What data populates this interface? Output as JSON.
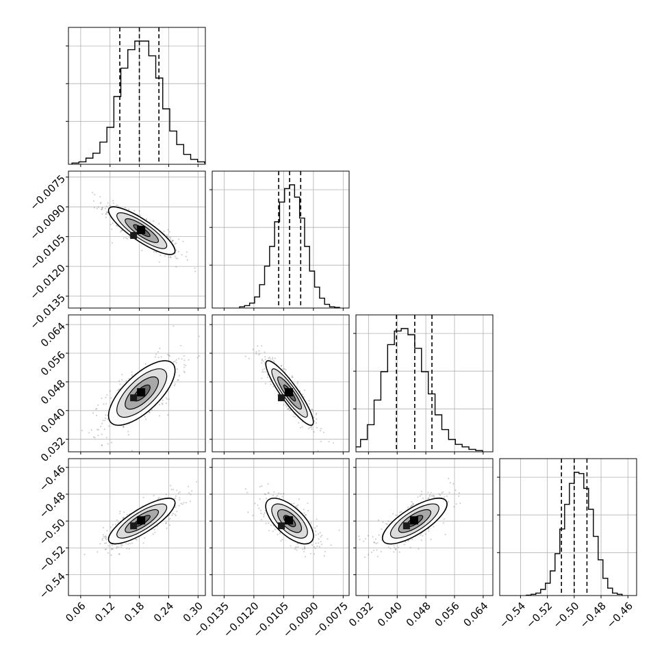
{
  "chart_data": {
    "type": "corner",
    "parameters": 4,
    "grid": true,
    "axes": [
      {
        "range": [
          0.035,
          0.315
        ],
        "ticks": [
          0.06,
          0.12,
          0.18,
          0.24,
          0.3
        ],
        "tick_labels": [
          "0.06",
          "0.12",
          "0.18",
          "0.24",
          "0.30"
        ]
      },
      {
        "range": [
          -0.0141,
          -0.0072
        ],
        "ticks": [
          -0.0135,
          -0.012,
          -0.0105,
          -0.009,
          -0.0075
        ],
        "tick_labels": [
          "−0.0135",
          "−0.0120",
          "−0.0105",
          "−0.0090",
          "−0.0075"
        ]
      },
      {
        "range": [
          0.0285,
          0.0667
        ],
        "ticks": [
          0.032,
          0.04,
          0.048,
          0.056,
          0.064
        ],
        "tick_labels": [
          "0.032",
          "0.040",
          "0.048",
          "0.056",
          "0.064"
        ]
      },
      {
        "range": [
          -0.5555,
          -0.4535
        ],
        "ticks": [
          -0.54,
          -0.52,
          -0.5,
          -0.48,
          -0.46
        ],
        "tick_labels": [
          "−0.54",
          "−0.52",
          "−0.50",
          "−0.48",
          "−0.46"
        ]
      }
    ],
    "marginals": [
      {
        "quantiles": [
          0.14,
          0.18,
          0.22
        ],
        "hist": [
          0.01,
          0.02,
          0.05,
          0.09,
          0.18,
          0.3,
          0.55,
          0.78,
          0.93,
          1.0,
          1.0,
          0.88,
          0.7,
          0.45,
          0.27,
          0.16,
          0.08,
          0.04,
          0.02,
          0.01
        ]
      },
      {
        "quantiles": [
          -0.01075,
          -0.0102,
          -0.00964
        ],
        "hist": [
          0.01,
          0.02,
          0.04,
          0.09,
          0.19,
          0.34,
          0.5,
          0.7,
          0.86,
          0.97,
          1.0,
          0.9,
          0.73,
          0.5,
          0.3,
          0.17,
          0.08,
          0.03,
          0.01,
          0.005
        ]
      },
      {
        "quantiles": [
          0.0398,
          0.0449,
          0.0497
        ],
        "hist": [
          0.01,
          0.04,
          0.1,
          0.22,
          0.42,
          0.65,
          0.87,
          0.98,
          1.0,
          0.95,
          0.84,
          0.65,
          0.47,
          0.3,
          0.18,
          0.1,
          0.06,
          0.04,
          0.02,
          0.01
        ]
      },
      {
        "quantiles": [
          -0.5095,
          -0.5,
          -0.4905
        ],
        "hist": [
          0.003,
          0.01,
          0.02,
          0.05,
          0.1,
          0.2,
          0.34,
          0.54,
          0.74,
          0.91,
          1.0,
          0.99,
          0.87,
          0.7,
          0.48,
          0.29,
          0.14,
          0.06,
          0.02,
          0.01
        ]
      }
    ],
    "means": [
      0.185,
      -0.0102,
      0.0449,
      -0.5
    ],
    "stds": [
      0.034,
      0.0006,
      0.0045,
      0.0085
    ],
    "correlations": [
      [
        1.0,
        -0.85,
        0.7,
        0.8
      ],
      [
        -0.85,
        1.0,
        -0.9,
        -0.65
      ],
      [
        0.7,
        -0.9,
        1.0,
        0.75
      ],
      [
        0.8,
        -0.65,
        0.75,
        1.0
      ]
    ],
    "contour_levels_sigma": [
      0.5,
      1.0,
      1.5,
      2.0
    ],
    "colors": {
      "frame": "#000000",
      "grid": "#b0b0b0",
      "points": "#555555",
      "fill": "#ffffff"
    }
  }
}
